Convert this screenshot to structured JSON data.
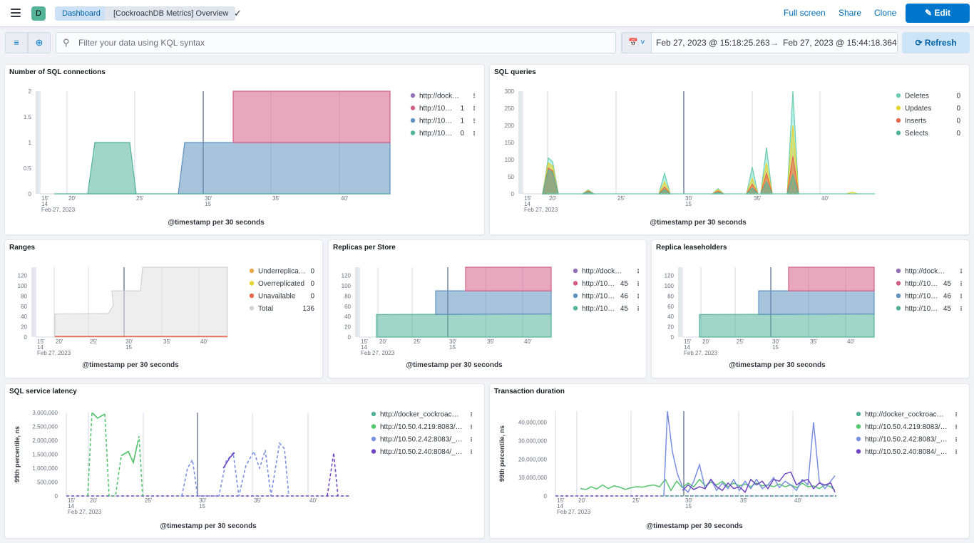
{
  "header": {
    "avatar": "D",
    "breadcrumb_root": "Dashboard",
    "breadcrumb_current": "[CockroachDB Metrics] Overview",
    "full_screen": "Full screen",
    "share": "Share",
    "clone": "Clone",
    "edit": "Edit"
  },
  "filter": {
    "placeholder": "Filter your data using KQL syntax",
    "date_start": "Feb 27, 2023 @ 15:18:25.263",
    "date_arrow": "→",
    "date_end": "Feb 27, 2023 @ 15:44:18.364",
    "refresh": "Refresh"
  },
  "colors": {
    "green": "#54b399",
    "blue": "#6092c0",
    "pink": "#d36086",
    "purple": "#9170b8",
    "cyan": "#6dccb1",
    "lightblue": "#7de2d1",
    "yellow": "#e7d533",
    "orange": "#e7664c",
    "bright_green": "#54b399",
    "gray": "#d3d3d3"
  },
  "panels": {
    "sql_connections": {
      "title": "Number of SQL connections",
      "xtitle": "@timestamp per 30 seconds"
    },
    "sql_queries": {
      "title": "SQL queries",
      "xtitle": "@timestamp per 30 seconds"
    },
    "ranges": {
      "title": "Ranges",
      "xtitle": "@timestamp per 30 seconds"
    },
    "replicas": {
      "title": "Replicas per Store",
      "xtitle": "@timestamp per 30 seconds"
    },
    "leaseholders": {
      "title": "Replica leaseholders",
      "xtitle": "@timestamp per 30 seconds"
    },
    "latency": {
      "title": "SQL service latency",
      "xtitle": "@timestamp per 30 seconds",
      "ytitle": "99th percentile, ns"
    },
    "txn": {
      "title": "Transaction duration",
      "xtitle": "@timestamp per 30 seconds",
      "ytitle": "99th percentile, ns"
    }
  },
  "chart_data": [
    {
      "id": "sql_connections",
      "type": "area",
      "x_ticks": [
        "15'\n14\nFeb 27, 2023",
        "20'",
        "25'",
        "30'\n15",
        "35'",
        "40'"
      ],
      "y_ticks": [
        "0",
        "0.5",
        "1",
        "1.5",
        "2"
      ],
      "ylim": [
        0,
        2
      ],
      "series": [
        {
          "name": "http://dock…",
          "legend_value": "",
          "color": "#9170b8",
          "values": [
            0
          ]
        },
        {
          "name": "http://10…",
          "legend_value": "1",
          "color": "#d36086",
          "values": [
            1
          ]
        },
        {
          "name": "http://10…",
          "legend_value": "1",
          "color": "#6092c0",
          "values": [
            1
          ]
        },
        {
          "name": "http://10…",
          "legend_value": "0",
          "color": "#54b399",
          "values": [
            1,
            0
          ]
        }
      ]
    },
    {
      "id": "sql_queries",
      "type": "area",
      "x_ticks": [
        "15'\n14\nFeb 27, 2023",
        "20'",
        "25'",
        "30'\n15",
        "35'",
        "40'"
      ],
      "y_ticks": [
        "0",
        "50",
        "100",
        "150",
        "200",
        "250",
        "300"
      ],
      "ylim": [
        0,
        300
      ],
      "series": [
        {
          "name": "Deletes",
          "legend_value": "0",
          "color": "#6dccb1"
        },
        {
          "name": "Updates",
          "legend_value": "0",
          "color": "#e7d533"
        },
        {
          "name": "Inserts",
          "legend_value": "0",
          "color": "#e7664c"
        },
        {
          "name": "Selects",
          "legend_value": "0",
          "color": "#54b399"
        }
      ]
    },
    {
      "id": "ranges",
      "type": "area",
      "x_ticks": [
        "15'\n14\nFeb 27, 2023",
        "20'",
        "25'",
        "30'\n15",
        "35'",
        "40'"
      ],
      "y_ticks": [
        "0",
        "20",
        "40",
        "60",
        "80",
        "100",
        "120"
      ],
      "ylim": [
        0,
        136
      ],
      "series": [
        {
          "name": "Underreplica…",
          "legend_value": "0",
          "color": "#e7a94c"
        },
        {
          "name": "Overreplicated",
          "legend_value": "0",
          "color": "#e7d533"
        },
        {
          "name": "Unavailable",
          "legend_value": "0",
          "color": "#e7664c"
        },
        {
          "name": "Total",
          "legend_value": "136",
          "color": "#d3d3d3"
        }
      ]
    },
    {
      "id": "replicas",
      "type": "area",
      "x_ticks": [
        "15'\n14\nFeb 27, 2023",
        "20'",
        "25'",
        "30'\n15",
        "35'",
        "40'"
      ],
      "y_ticks": [
        "0",
        "20",
        "40",
        "60",
        "80",
        "100",
        "120"
      ],
      "ylim": [
        0,
        136
      ],
      "series": [
        {
          "name": "http://dock…",
          "legend_value": "",
          "color": "#9170b8"
        },
        {
          "name": "http://10…",
          "legend_value": "45",
          "color": "#d36086"
        },
        {
          "name": "http://10…",
          "legend_value": "46",
          "color": "#6092c0"
        },
        {
          "name": "http://10…",
          "legend_value": "45",
          "color": "#54b399"
        }
      ]
    },
    {
      "id": "leaseholders",
      "type": "area",
      "x_ticks": [
        "15'\n14\nFeb 27, 2023",
        "20'",
        "25'",
        "30'\n15",
        "35'",
        "40'"
      ],
      "y_ticks": [
        "0",
        "20",
        "40",
        "60",
        "80",
        "100",
        "120"
      ],
      "ylim": [
        0,
        136
      ],
      "series": [
        {
          "name": "http://dock…",
          "legend_value": "",
          "color": "#9170b8"
        },
        {
          "name": "http://10…",
          "legend_value": "45",
          "color": "#d36086"
        },
        {
          "name": "http://10…",
          "legend_value": "46",
          "color": "#6092c0"
        },
        {
          "name": "http://10…",
          "legend_value": "45",
          "color": "#54b399"
        }
      ]
    },
    {
      "id": "latency",
      "type": "line",
      "x_ticks": [
        "15'\n14\nFeb 27, 2023",
        "20'",
        "25'",
        "30'\n15",
        "35'",
        "40'"
      ],
      "y_ticks": [
        "0",
        "500,000",
        "1,000,000",
        "1,500,000",
        "2,000,000",
        "2,500,000",
        "3,000,000"
      ],
      "ylim": [
        0,
        3000000
      ],
      "series": [
        {
          "name": "http://docker_cockroac…",
          "color": "#54b399"
        },
        {
          "name": "http://10.50.4.219:8083/…",
          "color": "#54c36d"
        },
        {
          "name": "http://10.50.2.42:8083/_…",
          "color": "#7b8fe0"
        },
        {
          "name": "http://10.50.2.40:8084/_…",
          "color": "#6e46c0"
        }
      ]
    },
    {
      "id": "txn",
      "type": "line",
      "x_ticks": [
        "15'\n14\nFeb 27, 2023",
        "20'",
        "25'",
        "30'\n15",
        "35'",
        "40'"
      ],
      "y_ticks": [
        "0",
        "10,000,000",
        "20,000,000",
        "30,000,000",
        "40,000,000"
      ],
      "ylim": [
        0,
        46000000
      ],
      "series": [
        {
          "name": "http://docker_cockroac…",
          "color": "#54b399"
        },
        {
          "name": "http://10.50.4.219:8083/…",
          "color": "#54c36d"
        },
        {
          "name": "http://10.50.2.42:8083/_…",
          "color": "#7b8fe0"
        },
        {
          "name": "http://10.50.2.40:8084/_…",
          "color": "#6e46c0"
        }
      ]
    }
  ]
}
